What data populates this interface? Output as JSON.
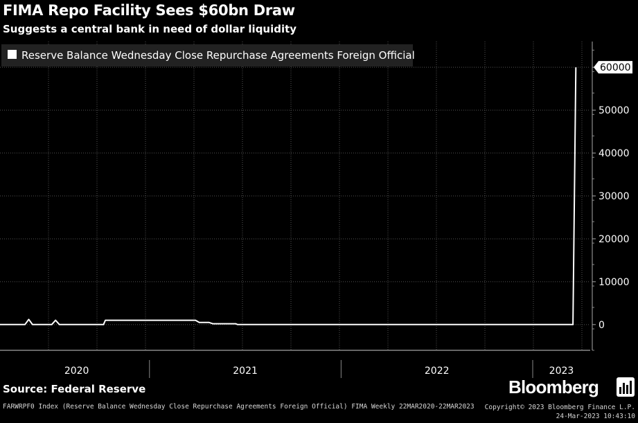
{
  "header": {
    "title": "FIMA Repo Facility Sees $60bn Draw",
    "subtitle": "Suggests a central bank in need of dollar liquidity"
  },
  "chart_data": {
    "type": "line",
    "series": [
      {
        "name": "Reserve Balance Wednesday Close Repurchase Agreements Foreign Official",
        "color": "#ffffff",
        "x": [
          2020.22,
          2020.35,
          2020.37,
          2020.39,
          2020.49,
          2020.51,
          2020.53,
          2020.76,
          2020.77,
          2021.24,
          2021.26,
          2021.31,
          2021.33,
          2021.45,
          2021.46,
          2023.21,
          2023.225
        ],
        "values": [
          0,
          0,
          1200,
          0,
          0,
          1000,
          0,
          0,
          1000,
          1000,
          500,
          500,
          200,
          200,
          0,
          0,
          60000
        ]
      }
    ],
    "last_value_label": "60000",
    "ylim": [
      -6000,
      66000
    ],
    "yticks": [
      0,
      10000,
      20000,
      30000,
      40000,
      50000,
      60000
    ],
    "ytick_labels": [
      "0",
      "10000",
      "20000",
      "30000",
      "40000",
      "50000",
      "60000"
    ],
    "x_year_labels": [
      {
        "label": "2020",
        "x": 2020.62
      },
      {
        "label": "2021",
        "x": 2021.5
      },
      {
        "label": "2022",
        "x": 2022.5
      },
      {
        "label": "2023",
        "x": 2023.15
      }
    ],
    "x_year_boundaries": [
      2021.0,
      2022.0,
      2023.0
    ],
    "xlim": [
      2020.22,
      2023.3
    ],
    "grid": true,
    "legend_position": "top-left",
    "title": "FIMA Repo Facility Sees $60bn Draw",
    "xlabel": "",
    "ylabel": ""
  },
  "footer": {
    "source": "Source: Federal Reserve",
    "brand": "Bloomberg",
    "index_note": "FARWRPF0 Index (Reserve Balance Wednesday Close Repurchase Agreements Foreign Official) FIMA  Weekly 22MAR2020-22MAR2023",
    "copyright": "Copyright© 2023 Bloomberg Finance L.P.",
    "timestamp": "24-Mar-2023 10:43:10"
  }
}
